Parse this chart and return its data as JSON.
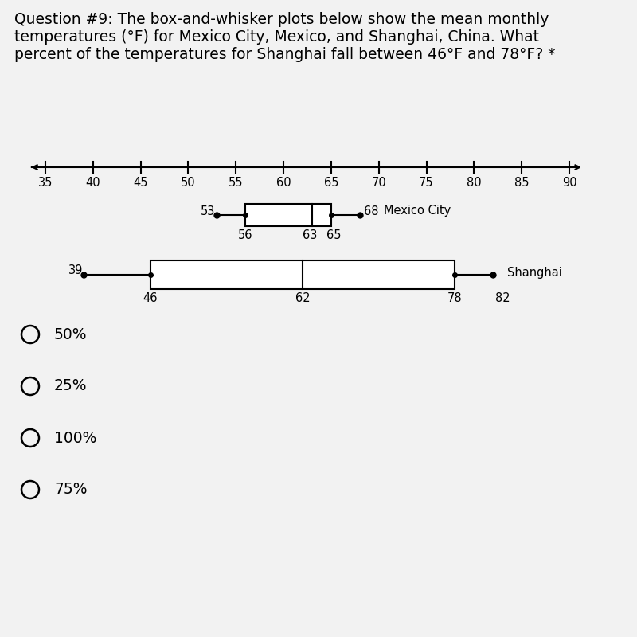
{
  "title_lines": [
    "Question #9: The box-and-whisker plots below show the mean monthly",
    "temperatures (°F) for Mexico City, Mexico, and Shanghai, China. What",
    "percent of the temperatures for Shanghai fall between 46°F and 78°F? *"
  ],
  "axis_ticks": [
    35,
    40,
    45,
    50,
    55,
    60,
    65,
    70,
    75,
    80,
    85,
    90
  ],
  "mexico_city": {
    "min": 53,
    "q1": 56,
    "median": 63,
    "q3": 65,
    "max": 68,
    "label": "Mexico City"
  },
  "shanghai": {
    "min": 39,
    "q1": 46,
    "median": 62,
    "q3": 78,
    "max": 82,
    "label": "Shanghai"
  },
  "choices": [
    "50%",
    "25%",
    "100%",
    "75%"
  ],
  "bg_color": "#f2f2f2",
  "box_color": "#000000",
  "text_color": "#000000",
  "title_fontsize": 13.5,
  "label_fontsize": 10.5,
  "choice_fontsize": 13.5
}
